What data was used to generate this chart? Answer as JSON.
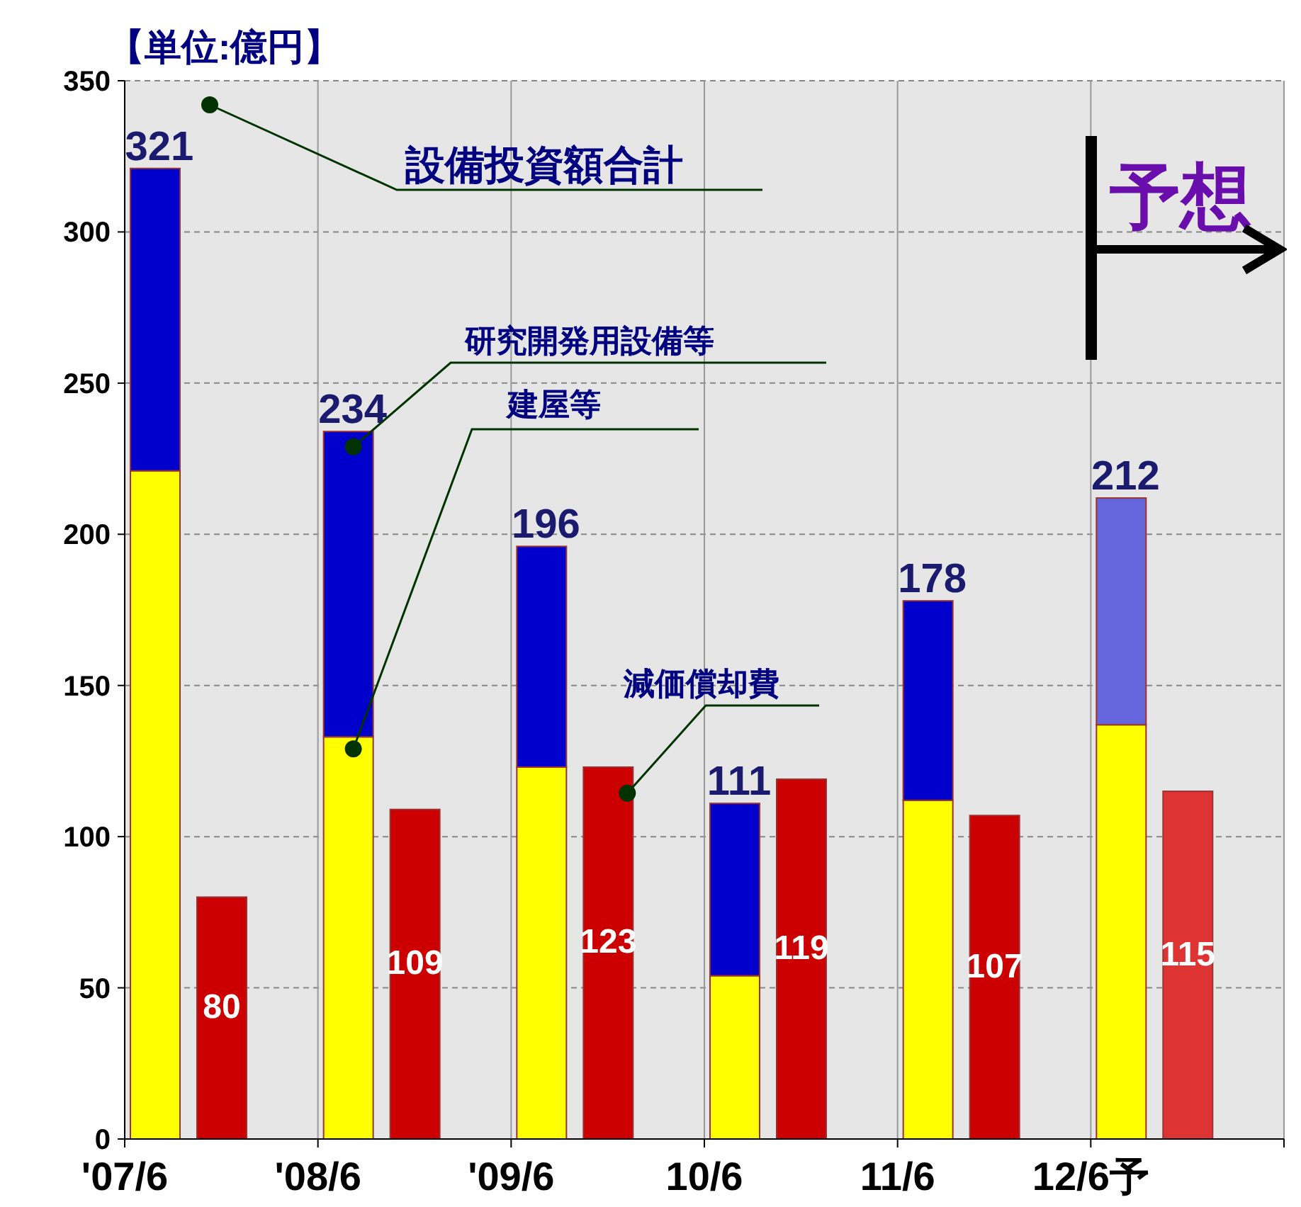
{
  "chart_data": [
    {
      "type": "bar",
      "ylabel": "【単位:億円】",
      "categories": [
        "'07/6",
        "'08/6",
        "'09/6",
        "10/6",
        "11/6",
        "12/6予"
      ],
      "stacked": true,
      "ylim": [
        0,
        350
      ],
      "yticks": [
        0,
        50,
        100,
        150,
        200,
        250,
        300,
        350
      ],
      "grid": true,
      "series": [
        {
          "name": "建屋等",
          "color": "#ffff00",
          "values": [
            221,
            133,
            123,
            54,
            112,
            137
          ]
        },
        {
          "name": "研究開発用設備等",
          "colors": [
            "#0000cc",
            "#0000cc",
            "#0000cc",
            "#0000cc",
            "#0000cc",
            "#6666dd"
          ],
          "values": [
            100,
            101,
            73,
            57,
            66,
            75
          ]
        }
      ],
      "totals": [
        "321",
        "234",
        "196",
        "111",
        "178",
        "212"
      ],
      "annotations": [
        "設備投資額合計",
        "予想"
      ]
    },
    {
      "type": "bar",
      "categories": [
        null,
        null,
        null,
        null,
        null,
        null
      ],
      "ylim": [
        0,
        350
      ],
      "tick_labels": false,
      "series": [
        {
          "name": "減価償却費",
          "colors": [
            "#cc0000",
            "#cc0000",
            "#cc0000",
            "#cc0000",
            "#cc0000",
            "#dd3333"
          ],
          "values": [
            80,
            109,
            123,
            119,
            107,
            115
          ],
          "value_labels": [
            "80",
            "109",
            "123",
            "119",
            "107",
            "115"
          ]
        }
      ]
    }
  ]
}
